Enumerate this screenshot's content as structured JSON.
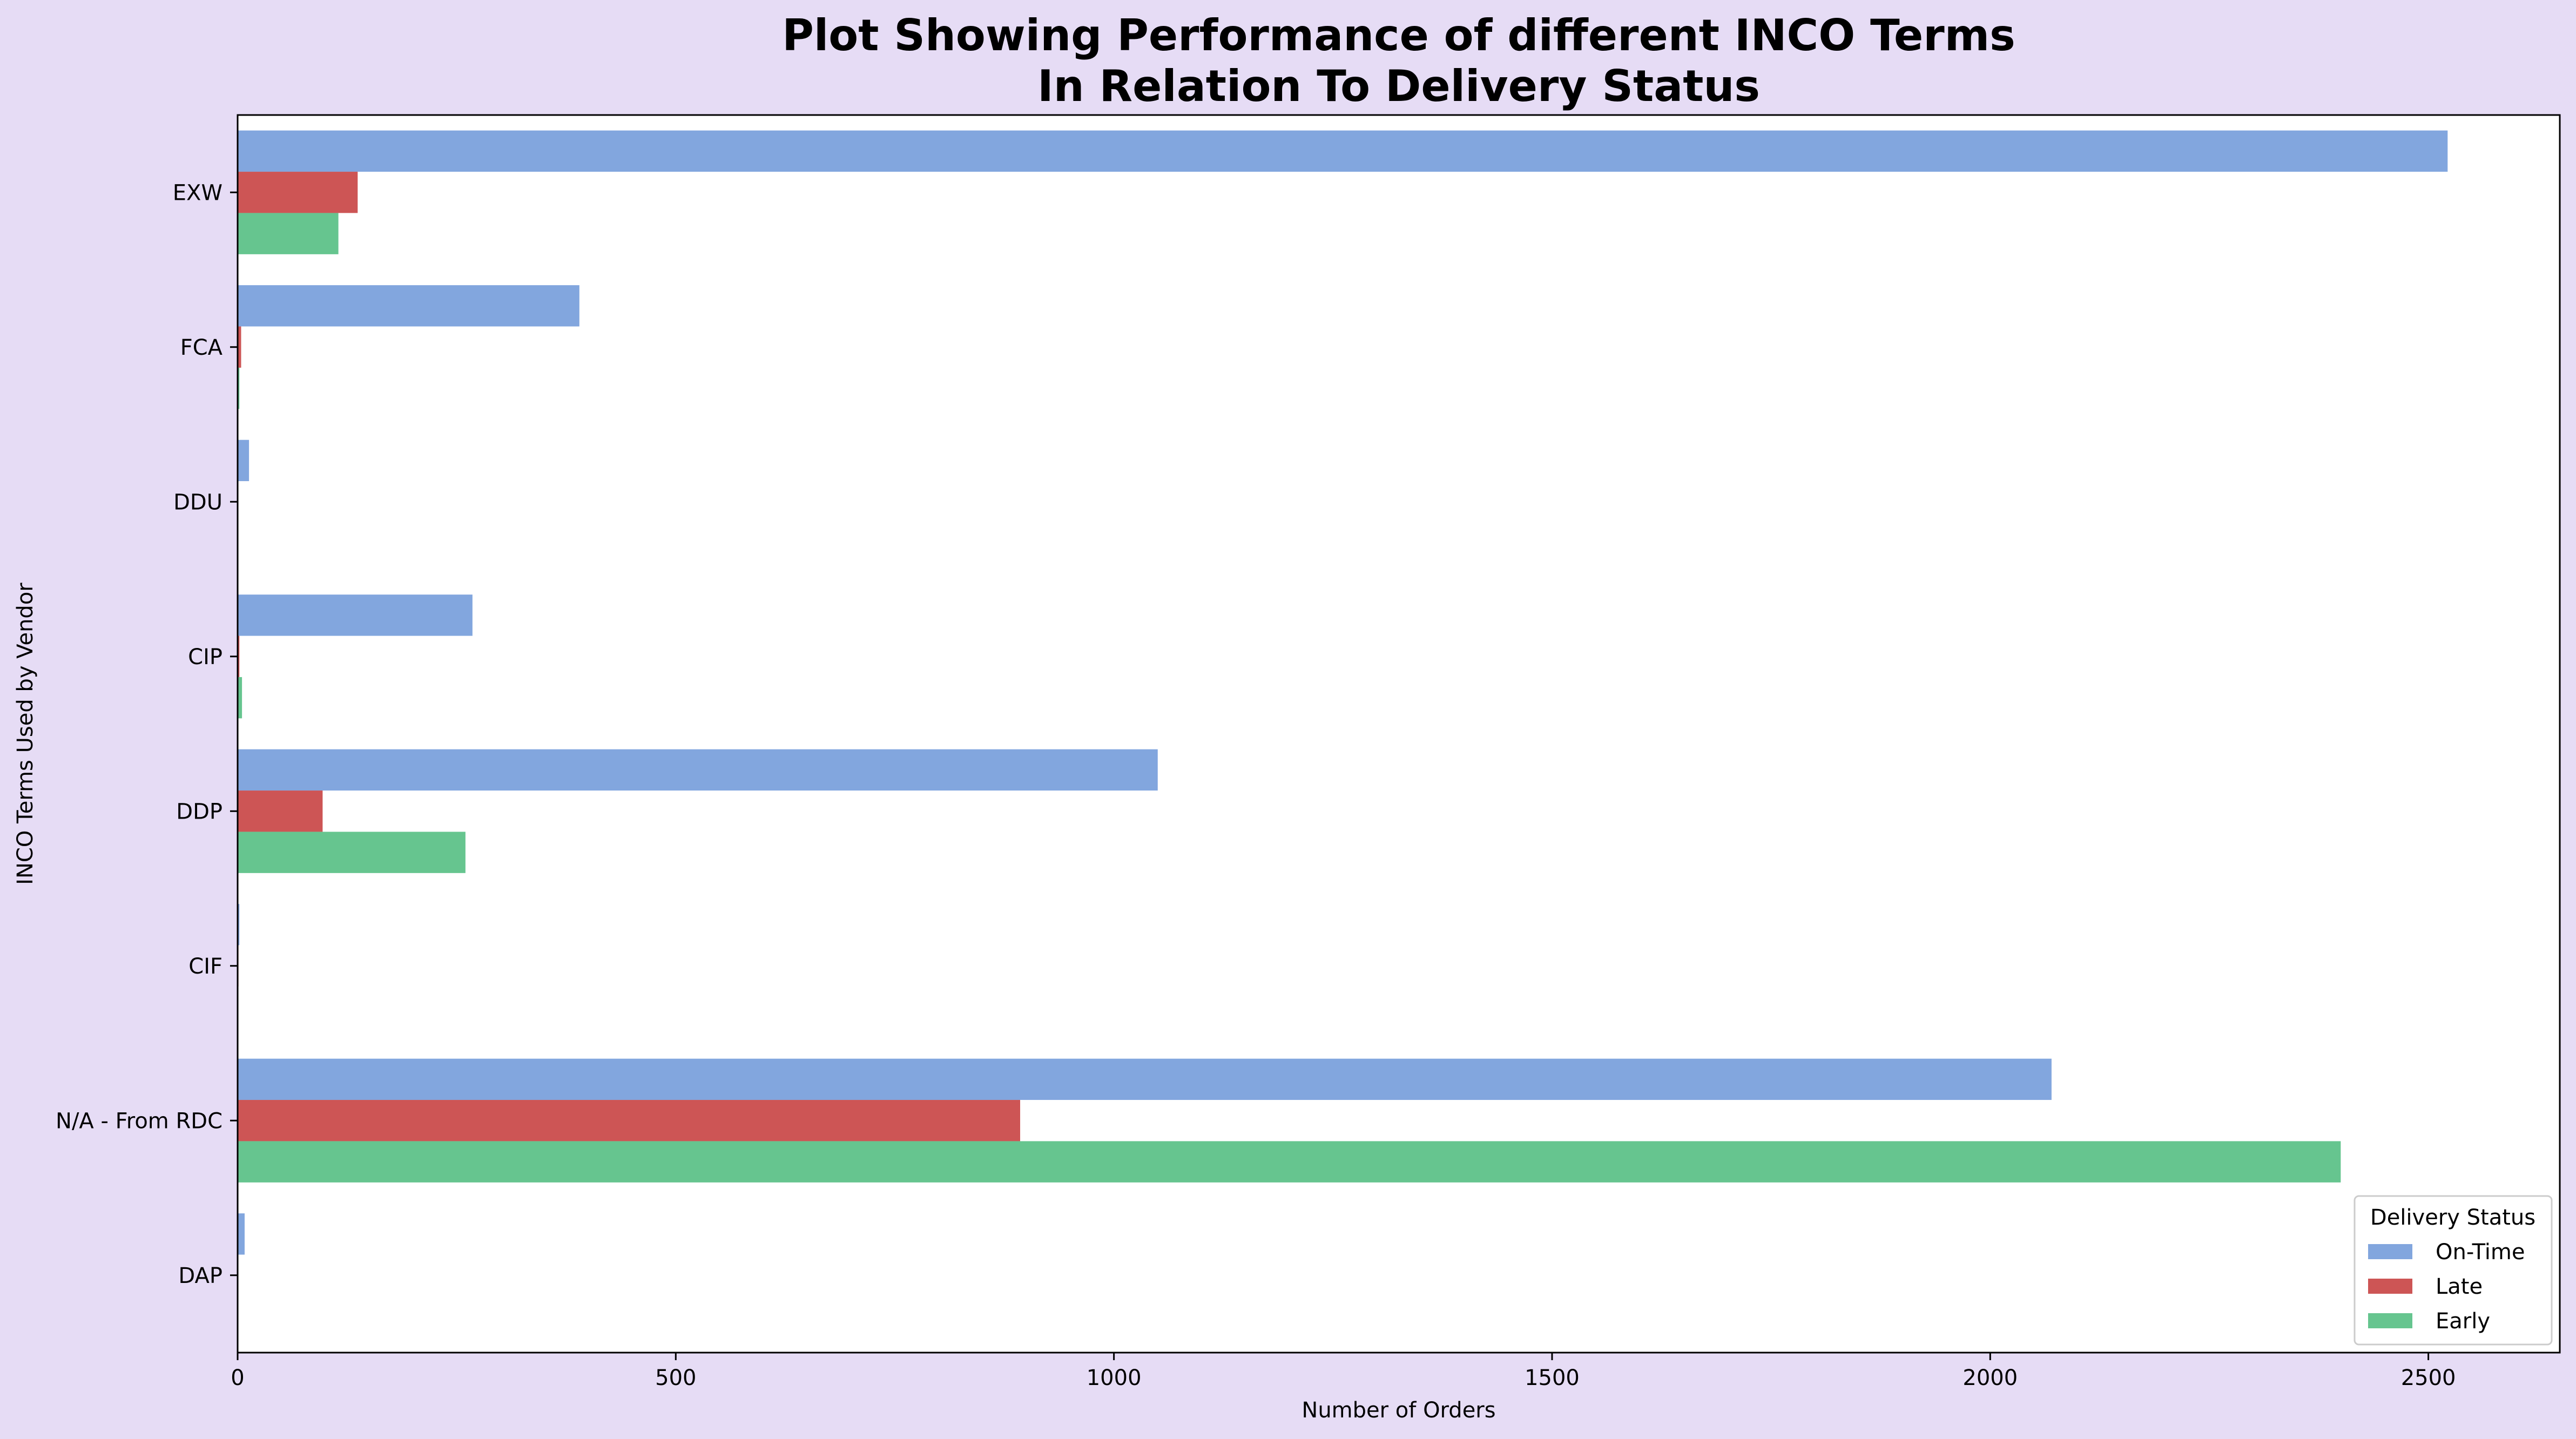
{
  "chart_data": {
    "type": "bar",
    "orientation": "horizontal",
    "title_lines": [
      "Plot Showing Performance of different INCO Terms",
      "In Relation To Delivery Status"
    ],
    "xlabel": "Number of Orders",
    "ylabel": "INCO Terms Used by Vendor",
    "xlim": [
      0,
      2650
    ],
    "xticks": [
      0,
      500,
      1000,
      1500,
      2000,
      2500
    ],
    "categories": [
      "EXW",
      "FCA",
      "DDU",
      "CIP",
      "DDP",
      "CIF",
      "N/A - From RDC",
      "DAP"
    ],
    "series": [
      {
        "name": "On-Time",
        "color": "#82a6de",
        "values": [
          2522,
          390,
          13,
          268,
          1050,
          2,
          2070,
          8
        ]
      },
      {
        "name": "Late",
        "color": "#cd5555",
        "values": [
          137,
          4,
          0,
          2,
          97,
          1,
          893,
          0
        ]
      },
      {
        "name": "Early",
        "color": "#66c58f",
        "values": [
          115,
          2,
          0,
          5,
          260,
          0,
          2400,
          0
        ]
      }
    ],
    "legend": {
      "title": "Delivery Status",
      "position": "lower-right"
    },
    "grid": false
  }
}
